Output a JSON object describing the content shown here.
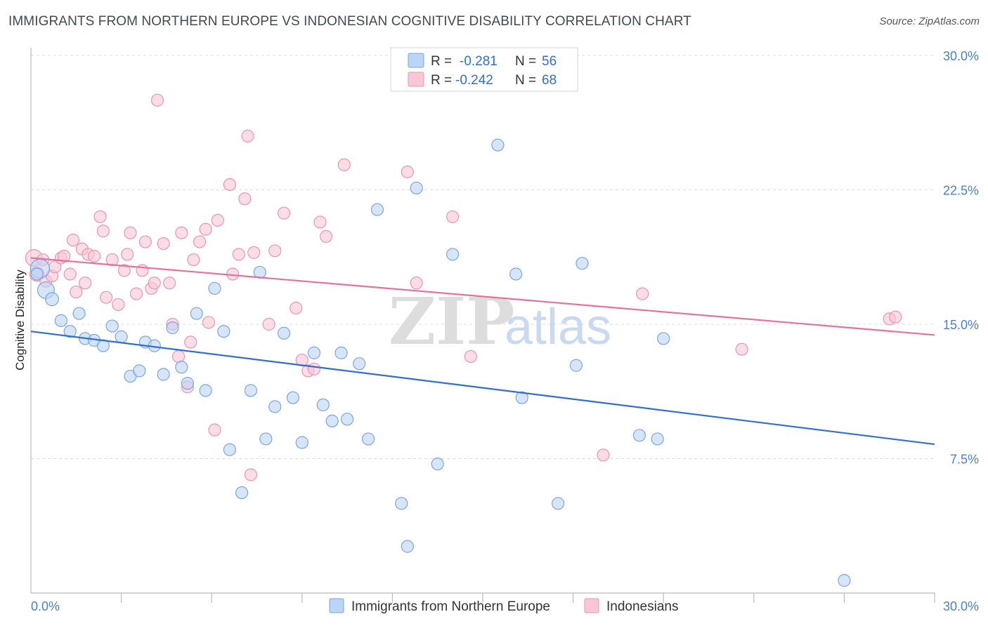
{
  "header": {
    "title": "IMMIGRANTS FROM NORTHERN EUROPE VS INDONESIAN COGNITIVE DISABILITY CORRELATION CHART",
    "source": "Source: ZipAtlas.com"
  },
  "legend": {
    "rows": [
      {
        "r_label": "R =",
        "r_value": "-0.281",
        "n_label": "N =",
        "n_value": "56"
      },
      {
        "r_label": "R =",
        "r_value": "-0.242",
        "n_label": "N =",
        "n_value": "68"
      }
    ]
  },
  "watermark": {
    "zip": "ZIP",
    "atlas": "atlas"
  },
  "colors": {
    "series1_fill": "#bcd4f5",
    "series1_stroke": "#7aa6e0",
    "series1_line": "#2f6fd0",
    "series2_fill": "#f9c6d6",
    "series2_stroke": "#ec93b2",
    "series2_line": "#e4729a",
    "grid": "#dcdcdc",
    "axis": "#bbbbbb",
    "tick_text": "#4a7fd0"
  },
  "chart_data": {
    "type": "scatter",
    "title": "IMMIGRANTS FROM NORTHERN EUROPE VS INDONESIAN COGNITIVE DISABILITY CORRELATION CHART",
    "xlabel": "",
    "ylabel": "Cognitive Disability",
    "xlim": [
      0,
      30
    ],
    "ylim": [
      0,
      30
    ],
    "y_ticks": [
      7.5,
      15.0,
      22.5,
      30.0
    ],
    "y_tick_labels": [
      "7.5%",
      "15.0%",
      "22.5%",
      "30.0%"
    ],
    "x_tick_labels": [
      "0.0%",
      "30.0%"
    ],
    "x_tick_label_values": [
      0,
      30
    ],
    "series": [
      {
        "name": "Immigrants from Northern Europe",
        "r": -0.281,
        "n": 56,
        "trend": {
          "x": [
            0,
            30
          ],
          "y": [
            14.6,
            8.3
          ]
        },
        "points": [
          [
            0.3,
            18.1,
            1.6
          ],
          [
            0.5,
            16.9,
            1.4
          ],
          [
            0.7,
            16.4,
            1.1
          ],
          [
            1.0,
            15.2,
            1
          ],
          [
            1.3,
            14.6,
            1
          ],
          [
            1.6,
            15.6,
            1
          ],
          [
            1.8,
            14.2,
            1
          ],
          [
            2.1,
            14.1,
            1
          ],
          [
            2.4,
            13.8,
            1
          ],
          [
            2.7,
            14.9,
            1
          ],
          [
            3.0,
            14.3,
            1
          ],
          [
            3.3,
            12.1,
            1
          ],
          [
            3.6,
            12.4,
            1
          ],
          [
            3.8,
            14.0,
            1
          ],
          [
            4.1,
            13.8,
            1
          ],
          [
            4.4,
            12.2,
            1
          ],
          [
            4.7,
            14.8,
            1
          ],
          [
            5.0,
            12.6,
            1
          ],
          [
            5.2,
            11.7,
            1
          ],
          [
            5.5,
            15.6,
            1
          ],
          [
            5.8,
            11.3,
            1
          ],
          [
            6.1,
            17.0,
            1
          ],
          [
            6.4,
            14.6,
            1
          ],
          [
            6.6,
            8.0,
            1
          ],
          [
            7.0,
            5.6,
            1
          ],
          [
            7.3,
            11.3,
            1
          ],
          [
            7.6,
            17.9,
            1
          ],
          [
            7.8,
            8.6,
            1
          ],
          [
            8.1,
            10.4,
            1
          ],
          [
            8.4,
            14.5,
            1
          ],
          [
            8.7,
            10.9,
            1
          ],
          [
            9.0,
            8.4,
            1
          ],
          [
            9.4,
            13.4,
            1
          ],
          [
            9.7,
            10.5,
            1
          ],
          [
            10.0,
            9.6,
            1
          ],
          [
            10.3,
            13.4,
            1
          ],
          [
            10.5,
            9.7,
            1
          ],
          [
            10.9,
            12.8,
            1
          ],
          [
            11.2,
            8.6,
            1
          ],
          [
            11.5,
            21.4,
            1
          ],
          [
            12.3,
            5.0,
            1
          ],
          [
            12.5,
            2.6,
            1
          ],
          [
            12.8,
            22.6,
            1
          ],
          [
            13.5,
            7.2,
            1
          ],
          [
            14.0,
            18.9,
            1
          ],
          [
            15.5,
            25.0,
            1
          ],
          [
            16.1,
            17.8,
            1
          ],
          [
            16.3,
            10.9,
            1
          ],
          [
            17.5,
            5.0,
            1
          ],
          [
            18.1,
            12.7,
            1
          ],
          [
            18.3,
            18.4,
            1
          ],
          [
            20.2,
            8.8,
            1
          ],
          [
            20.8,
            8.6,
            1
          ],
          [
            21.0,
            14.2,
            1
          ],
          [
            27.0,
            0.7,
            1
          ],
          [
            0.2,
            17.8,
            1
          ]
        ]
      },
      {
        "name": "Indonesians",
        "r": -0.242,
        "n": 68,
        "trend": {
          "x": [
            0,
            30
          ],
          "y": [
            18.7,
            14.4
          ]
        },
        "points": [
          [
            0.1,
            18.7,
            1.4
          ],
          [
            0.2,
            17.8,
            1.2
          ],
          [
            0.4,
            18.6,
            1
          ],
          [
            0.5,
            17.4,
            1
          ],
          [
            0.7,
            17.7,
            1
          ],
          [
            0.8,
            18.2,
            1
          ],
          [
            1.0,
            18.7,
            1
          ],
          [
            1.1,
            18.8,
            1
          ],
          [
            1.3,
            17.8,
            1
          ],
          [
            1.4,
            19.7,
            1
          ],
          [
            1.5,
            16.8,
            1
          ],
          [
            1.7,
            19.2,
            1
          ],
          [
            1.8,
            17.3,
            1
          ],
          [
            1.9,
            18.9,
            1
          ],
          [
            2.1,
            18.8,
            1
          ],
          [
            2.3,
            21.0,
            1
          ],
          [
            2.4,
            20.2,
            1
          ],
          [
            2.5,
            16.5,
            1
          ],
          [
            2.7,
            18.6,
            1
          ],
          [
            2.9,
            16.1,
            1
          ],
          [
            3.1,
            18.0,
            1
          ],
          [
            3.2,
            18.9,
            1
          ],
          [
            3.3,
            20.1,
            1
          ],
          [
            3.5,
            16.7,
            1
          ],
          [
            3.7,
            18.0,
            1
          ],
          [
            3.8,
            19.6,
            1
          ],
          [
            4.0,
            17.0,
            1
          ],
          [
            4.1,
            17.3,
            1
          ],
          [
            4.4,
            19.5,
            1
          ],
          [
            4.6,
            17.3,
            1
          ],
          [
            4.2,
            27.5,
            1
          ],
          [
            4.7,
            15.0,
            1
          ],
          [
            4.9,
            13.2,
            1
          ],
          [
            5.0,
            20.1,
            1
          ],
          [
            5.2,
            11.5,
            1
          ],
          [
            5.3,
            14.0,
            1
          ],
          [
            5.4,
            18.6,
            1
          ],
          [
            5.6,
            19.6,
            1
          ],
          [
            5.8,
            20.3,
            1
          ],
          [
            5.9,
            15.1,
            1
          ],
          [
            6.1,
            9.1,
            1
          ],
          [
            6.2,
            20.8,
            1
          ],
          [
            6.6,
            22.8,
            1
          ],
          [
            6.7,
            17.8,
            1
          ],
          [
            6.9,
            18.9,
            1
          ],
          [
            7.1,
            22.0,
            1
          ],
          [
            7.2,
            25.5,
            1
          ],
          [
            7.3,
            6.6,
            1
          ],
          [
            7.4,
            19.0,
            1
          ],
          [
            7.9,
            15.0,
            1
          ],
          [
            8.1,
            19.1,
            1
          ],
          [
            8.4,
            21.2,
            1
          ],
          [
            8.8,
            15.9,
            1
          ],
          [
            9.0,
            13.0,
            1
          ],
          [
            9.2,
            12.4,
            1
          ],
          [
            9.4,
            12.5,
            1
          ],
          [
            9.6,
            20.7,
            1
          ],
          [
            9.8,
            19.9,
            1
          ],
          [
            10.4,
            23.9,
            1
          ],
          [
            12.5,
            23.5,
            1
          ],
          [
            12.8,
            17.3,
            1
          ],
          [
            14.0,
            21.0,
            1
          ],
          [
            14.6,
            13.2,
            1
          ],
          [
            19.0,
            7.7,
            1
          ],
          [
            20.3,
            16.7,
            1
          ],
          [
            23.6,
            13.6,
            1
          ],
          [
            28.5,
            15.3,
            1
          ],
          [
            28.7,
            15.4,
            1
          ]
        ]
      }
    ]
  }
}
